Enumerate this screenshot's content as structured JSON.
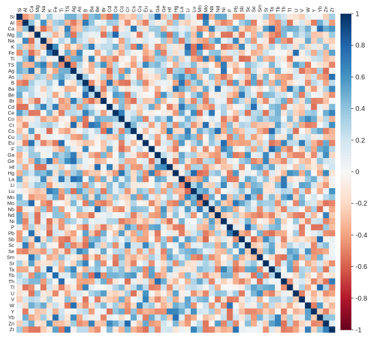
{
  "chart_data": {
    "type": "heatmap",
    "variables": [
      "Si",
      "Al",
      "Ca",
      "Mg",
      "Na",
      "K",
      "Fe",
      "Ti",
      "TS",
      "Ag",
      "As",
      "B",
      "Ba",
      "Be",
      "Br",
      "Cd",
      "Ce",
      "Co",
      "Cr",
      "Cs",
      "Cu",
      "Eu",
      "F",
      "Ga",
      "Ge",
      "Hf",
      "Hg",
      "La",
      "Li",
      "Lu",
      "Mn",
      "Mo",
      "Nb",
      "Nd",
      "Ni",
      "P",
      "Pb",
      "Sb",
      "Sc",
      "Se",
      "Sm",
      "Sr",
      "Ta",
      "Tb",
      "Th",
      "Tl",
      "U",
      "V",
      "W",
      "Y",
      "Yb",
      "Zn",
      "Zr"
    ],
    "colorbar": {
      "range": [
        -1,
        1
      ],
      "ticks": [
        "1",
        "0.8",
        "0.6",
        "0.4",
        "0.2",
        "0",
        "-0.2",
        "-0.4",
        "-0.6",
        "-0.8",
        "-1"
      ],
      "colors": [
        "#67001f",
        "#b2182b",
        "#d6604d",
        "#f4a582",
        "#fddbc7",
        "#f7f7f7",
        "#d1e5f0",
        "#92c5de",
        "#4393c3",
        "#2166ac",
        "#053061"
      ]
    },
    "diagonal_value": 1,
    "off_diagonal_range": [
      -0.6,
      0.8
    ],
    "note_values": "off-diagonal correlations vary roughly between -0.5 and 0.7 in a scattered pattern"
  }
}
